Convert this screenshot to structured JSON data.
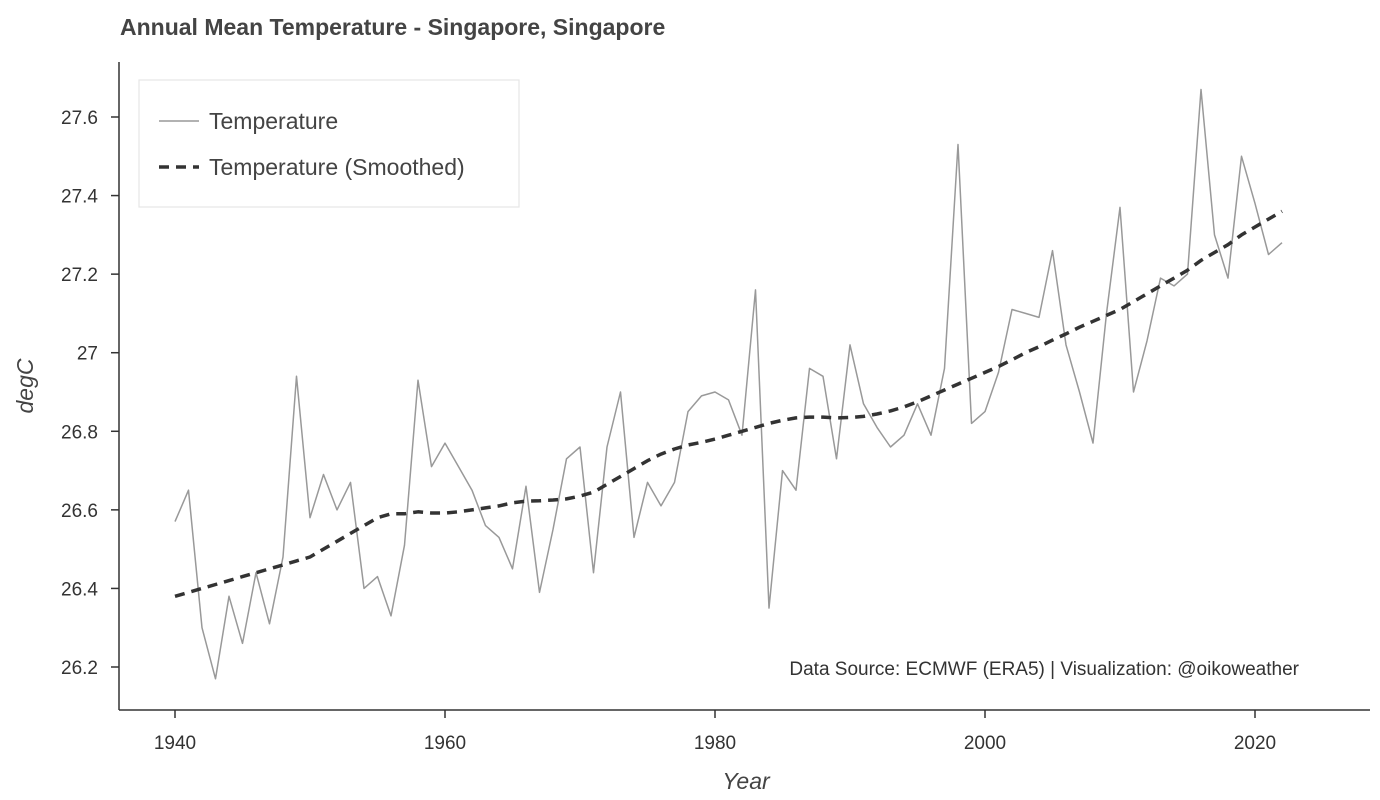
{
  "chart_data": {
    "type": "line",
    "title": "Annual Mean Temperature - Singapore, Singapore",
    "xlabel": "Year",
    "ylabel": "degC",
    "xlim": [
      1936,
      2025
    ],
    "ylim": [
      26.1,
      27.75
    ],
    "xticks": [
      1940,
      1960,
      1980,
      2000,
      2020
    ],
    "xtick_labels": [
      "1940",
      "1960",
      "1980",
      "2000",
      "2020"
    ],
    "yticks": [
      26.2,
      26.4,
      26.6,
      26.8,
      27.0,
      27.2,
      27.4,
      27.6
    ],
    "ytick_labels": [
      "26.2",
      "26.4",
      "26.6",
      "26.8",
      "27",
      "27.2",
      "27.4",
      "27.6"
    ],
    "grid": false,
    "legend_position": "top-left",
    "annotation": "Data Source: ECMWF (ERA5) | Visualization: @oikoweather",
    "series": [
      {
        "name": "Temperature",
        "color": "#999999",
        "style": "solid",
        "x": [
          1940,
          1941,
          1942,
          1943,
          1944,
          1945,
          1946,
          1947,
          1948,
          1949,
          1950,
          1951,
          1952,
          1953,
          1954,
          1955,
          1956,
          1957,
          1958,
          1959,
          1960,
          1961,
          1962,
          1963,
          1964,
          1965,
          1966,
          1967,
          1968,
          1969,
          1970,
          1971,
          1972,
          1973,
          1974,
          1975,
          1976,
          1977,
          1978,
          1979,
          1980,
          1981,
          1982,
          1983,
          1984,
          1985,
          1986,
          1987,
          1988,
          1989,
          1990,
          1991,
          1992,
          1993,
          1994,
          1995,
          1996,
          1997,
          1998,
          1999,
          2000,
          2001,
          2002,
          2003,
          2004,
          2005,
          2006,
          2007,
          2008,
          2009,
          2010,
          2011,
          2012,
          2013,
          2014,
          2015,
          2016,
          2017,
          2018,
          2019,
          2020,
          2021,
          2022
        ],
        "y": [
          26.57,
          26.65,
          26.3,
          26.17,
          26.38,
          26.26,
          26.44,
          26.31,
          26.48,
          26.94,
          26.58,
          26.69,
          26.6,
          26.67,
          26.4,
          26.43,
          26.33,
          26.51,
          26.93,
          26.71,
          26.77,
          26.71,
          26.65,
          26.56,
          26.53,
          26.45,
          26.66,
          26.39,
          26.55,
          26.73,
          26.76,
          26.44,
          26.76,
          26.9,
          26.53,
          26.67,
          26.61,
          26.67,
          26.85,
          26.89,
          26.9,
          26.88,
          26.79,
          27.16,
          26.35,
          26.7,
          26.65,
          26.96,
          26.94,
          26.73,
          27.02,
          26.87,
          26.81,
          26.76,
          26.79,
          26.87,
          26.79,
          26.96,
          27.53,
          26.82,
          26.85,
          26.95,
          27.11,
          27.1,
          27.09,
          27.26,
          27.02,
          26.9,
          26.77,
          27.1,
          27.37,
          26.9,
          27.03,
          27.19,
          27.17,
          27.2,
          27.67,
          27.3,
          27.19,
          27.5,
          27.38,
          27.25,
          27.28
        ]
      },
      {
        "name": "Temperature (Smoothed)",
        "color": "#333333",
        "style": "dashed",
        "x": [
          1940,
          1941,
          1942,
          1943,
          1944,
          1945,
          1946,
          1947,
          1948,
          1949,
          1950,
          1951,
          1952,
          1953,
          1954,
          1955,
          1956,
          1957,
          1958,
          1959,
          1960,
          1961,
          1962,
          1963,
          1964,
          1965,
          1966,
          1967,
          1968,
          1969,
          1970,
          1971,
          1972,
          1973,
          1974,
          1975,
          1976,
          1977,
          1978,
          1979,
          1980,
          1981,
          1982,
          1983,
          1984,
          1985,
          1986,
          1987,
          1988,
          1989,
          1990,
          1991,
          1992,
          1993,
          1994,
          1995,
          1996,
          1997,
          1998,
          1999,
          2000,
          2001,
          2002,
          2003,
          2004,
          2005,
          2006,
          2007,
          2008,
          2009,
          2010,
          2011,
          2012,
          2013,
          2014,
          2015,
          2016,
          2017,
          2018,
          2019,
          2020,
          2021,
          2022
        ],
        "y": [
          26.38,
          26.39,
          26.4,
          26.41,
          26.42,
          26.43,
          26.44,
          26.45,
          26.46,
          26.47,
          26.48,
          26.5,
          26.52,
          26.54,
          26.56,
          26.58,
          26.59,
          26.59,
          26.595,
          26.592,
          26.592,
          26.595,
          26.6,
          26.605,
          26.61,
          26.618,
          26.622,
          26.623,
          26.625,
          26.628,
          26.635,
          26.645,
          26.665,
          26.685,
          26.705,
          26.725,
          26.742,
          26.755,
          26.765,
          26.772,
          26.78,
          26.79,
          26.8,
          26.81,
          26.82,
          26.828,
          26.834,
          26.836,
          26.836,
          26.834,
          26.835,
          26.838,
          26.844,
          26.852,
          26.862,
          26.875,
          26.89,
          26.905,
          26.92,
          26.935,
          26.95,
          26.965,
          26.982,
          27.0,
          27.015,
          27.032,
          27.048,
          27.065,
          27.08,
          27.095,
          27.11,
          27.13,
          27.15,
          27.17,
          27.19,
          27.21,
          27.235,
          27.255,
          27.275,
          27.3,
          27.32,
          27.34,
          27.36
        ]
      }
    ]
  }
}
